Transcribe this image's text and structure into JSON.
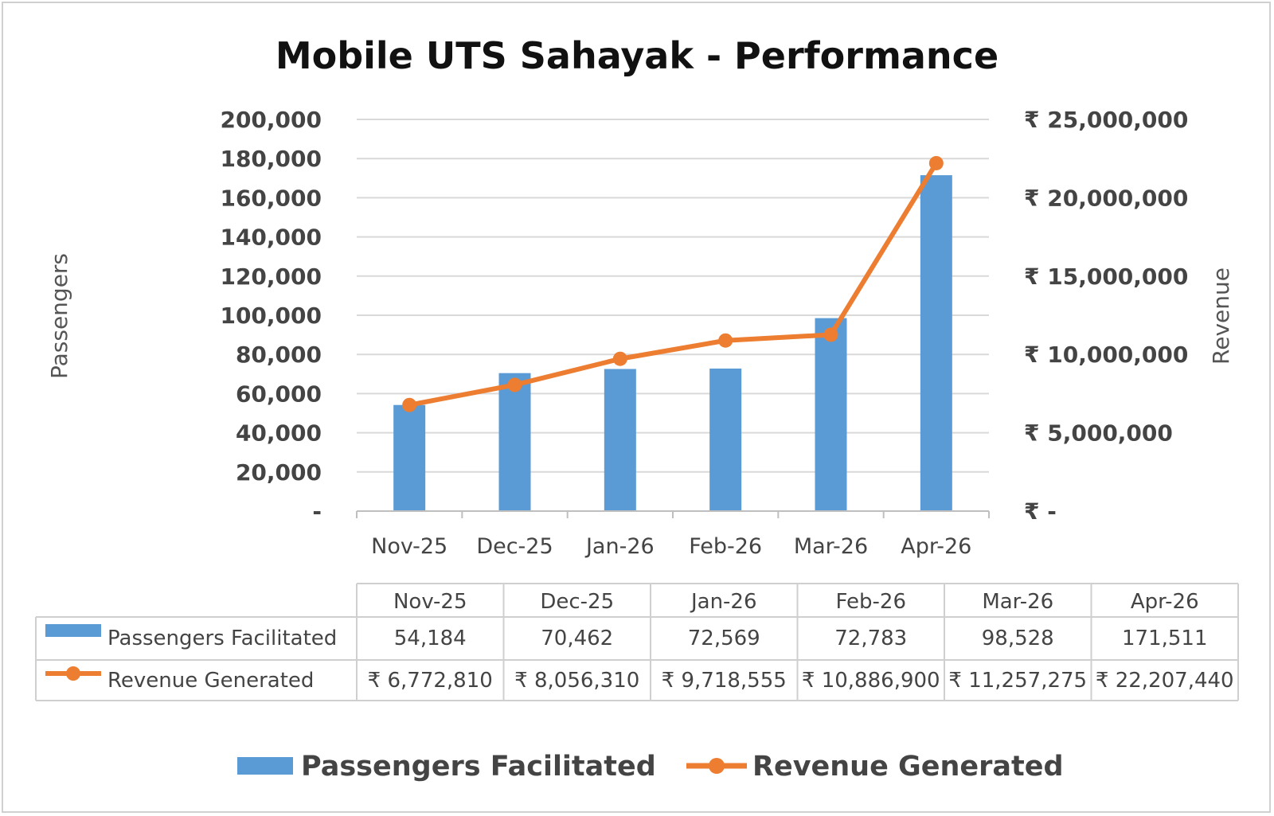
{
  "chart_data": {
    "type": "bar",
    "title": "Mobile UTS Sahayak - Performance",
    "categories": [
      "Nov-25",
      "Dec-25",
      "Jan-26",
      "Feb-26",
      "Mar-26",
      "Apr-26"
    ],
    "ylabel": "Passengers",
    "y2label": "Revenue",
    "ylim": [
      0,
      200000
    ],
    "y2lim": [
      0,
      25000000
    ],
    "yticks": [
      "-",
      "20,000",
      "40,000",
      "60,000",
      "80,000",
      "100,000",
      "120,000",
      "140,000",
      "160,000",
      "180,000",
      "200,000"
    ],
    "y2ticks": [
      "₹ -",
      "₹ 5,000,000",
      "₹ 10,000,000",
      "₹ 15,000,000",
      "₹ 20,000,000",
      "₹ 25,000,000"
    ],
    "grid": true,
    "legend_position": "bottom",
    "series": [
      {
        "name": "Passengers Facilitated",
        "type": "bar",
        "axis": "left",
        "color": "#5b9bd5",
        "values": [
          54184,
          70462,
          72569,
          72783,
          98528,
          171511
        ],
        "table_values": [
          "54,184",
          "70,462",
          "72,569",
          "72,783",
          "98,528",
          "171,511"
        ]
      },
      {
        "name": "Revenue Generated",
        "type": "line",
        "axis": "right",
        "color": "#ed7d31",
        "values": [
          6772810,
          8056310,
          9718555,
          10886900,
          11257275,
          22207440
        ],
        "table_values": [
          "₹ 6,772,810",
          "₹ 8,056,310",
          "₹ 9,718,555",
          "₹ 10,886,900",
          "₹ 11,257,275",
          "₹ 22,207,440"
        ]
      }
    ]
  }
}
